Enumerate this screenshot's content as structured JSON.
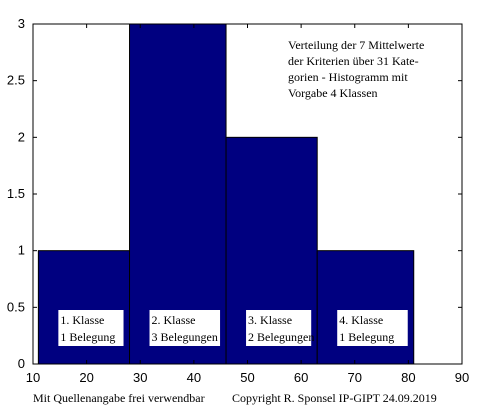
{
  "chart_data": {
    "type": "bar",
    "subtype": "histogram",
    "bins": [
      {
        "x_start": 11,
        "x_end": 28,
        "value": 1,
        "label_line1": "1. Klasse",
        "label_line2": "1 Belegung"
      },
      {
        "x_start": 28,
        "x_end": 46,
        "value": 3,
        "label_line1": "2. Klasse",
        "label_line2": "3 Belegungen"
      },
      {
        "x_start": 46,
        "x_end": 63,
        "value": 2,
        "label_line1": "3. Klasse",
        "label_line2": "2 Belegungen"
      },
      {
        "x_start": 63,
        "x_end": 81,
        "value": 1,
        "label_line1": "4. Klasse",
        "label_line2": "1 Belegung"
      }
    ],
    "xlim": [
      10,
      90
    ],
    "ylim": [
      0,
      3
    ],
    "x_ticks": [
      10,
      20,
      30,
      40,
      50,
      60,
      70,
      80,
      90
    ],
    "y_ticks": [
      "0",
      "0.5",
      "1",
      "1.5",
      "2",
      "2.5",
      "3"
    ],
    "bar_color": "#000080",
    "annotation_lines": [
      "Verteilung der 7 Mittelwerte",
      "der Kriterien über 31 Kate-",
      "gorien - Histogramm mit",
      "Vorgabe 4 Klassen"
    ],
    "footer_left": "Mit Quellenangabe frei verwendbar",
    "footer_right": "Copyright R. Sponsel IP-GIPT 24.09.2019"
  }
}
